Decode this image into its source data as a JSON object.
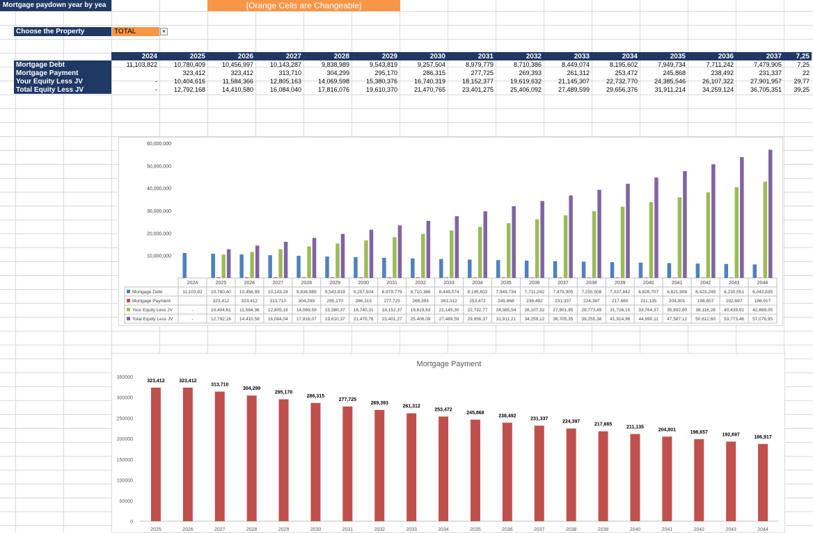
{
  "header": {
    "title": "Mortgage paydown year by yea",
    "banner": "[Orange Cells are Changeable]"
  },
  "selector": {
    "label": "Choose the Property",
    "value": "TOTAL"
  },
  "table": {
    "years": [
      "2024",
      "2025",
      "2026",
      "2027",
      "2028",
      "2029",
      "2030",
      "2031",
      "2032",
      "2033",
      "2034",
      "2035",
      "2036",
      "2037",
      "7,25"
    ],
    "rows": [
      {
        "label": "Mortgage Debt",
        "values": [
          "11,103,822",
          "10,780,409",
          "10,456,997",
          "10,143,287",
          "9,838,989",
          "9,543,819",
          "9,257,504",
          "8,979,779",
          "8,710,386",
          "8,449,074",
          "8,195,602",
          "7,949,734",
          "7,711,242",
          "7,479,905",
          "7,25"
        ]
      },
      {
        "label": "Mortgage Payment",
        "values": [
          "",
          "323,412",
          "323,412",
          "313,710",
          "304,299",
          "295,170",
          "286,315",
          "277,725",
          "269,393",
          "261,312",
          "253,472",
          "245,868",
          "238,492",
          "231,337",
          "22"
        ]
      },
      {
        "label": "Your Equity Less JV",
        "values": [
          "-",
          "10,404,616",
          "11,584,366",
          "12,805,163",
          "14,069,598",
          "15,380,376",
          "16,740,319",
          "18,152,377",
          "19,619,632",
          "21,145,307",
          "22,732,770",
          "24,385,546",
          "26,107,322",
          "27,901,957",
          "29,77"
        ]
      },
      {
        "label": "Total Equity Less JV",
        "values": [
          "-",
          "12,792,168",
          "14,410,580",
          "16,084,040",
          "17,816,076",
          "19,610,370",
          "21,470,765",
          "23,401,275",
          "25,406,092",
          "27,489,599",
          "29,656,376",
          "31,911,214",
          "34,259,124",
          "36,705,351",
          "39,25"
        ]
      }
    ]
  },
  "chart_data": [
    {
      "type": "bar",
      "title": "",
      "categories": [
        "2024",
        "2025",
        "2026",
        "2027",
        "2028",
        "2029",
        "2030",
        "2031",
        "2032",
        "2033",
        "2034",
        "2035",
        "2036",
        "2037",
        "2038",
        "2039",
        "2040",
        "2041",
        "2042",
        "2043",
        "2044"
      ],
      "ylim": [
        0,
        60000000
      ],
      "yticks": [
        "",
        "10,000,000",
        "20,000,000",
        "30,000,000",
        "40,000,000",
        "50,000,000",
        "60,000,000"
      ],
      "grid": false,
      "legend": "data-table",
      "series": [
        {
          "name": "Mortgage Debt",
          "color": "#4f81bd",
          "values": [
            11103822,
            10780409,
            10456997,
            10143287,
            9838989,
            9543819,
            9257504,
            8979779,
            8710386,
            8449074,
            8195602,
            7949734,
            7711242,
            7479905,
            7255508,
            7037842,
            6826707,
            6621906,
            6423249,
            6230551,
            6043635
          ],
          "labels": [
            "11,103,82",
            "10,780,40",
            "10,456,99",
            "10,143,28",
            "9,838,989",
            "9,543,819",
            "9,257,504",
            "8,979,779",
            "8,710,386",
            "8,449,074",
            "8,195,602",
            "7,949,734",
            "7,711,242",
            "7,479,905",
            "7,255,508",
            "7,037,842",
            "6,826,707",
            "6,621,906",
            "6,423,249",
            "6,230,551",
            "6,043,635"
          ]
        },
        {
          "name": "Mortgage Payment",
          "color": "#c0504d",
          "values": [
            0,
            323412,
            323412,
            313710,
            304299,
            295170,
            286315,
            277725,
            269393,
            261312,
            253472,
            245868,
            238492,
            231337,
            224397,
            217665,
            211135,
            204801,
            198657,
            192697,
            186917
          ],
          "labels": [
            "",
            "323,412",
            "323,412",
            "313,710",
            "304,299",
            "295,170",
            "286,315",
            "277,725",
            "269,393",
            "261,312",
            "253,472",
            "245,868",
            "238,492",
            "231,337",
            "224,397",
            "217,665",
            "211,135",
            "204,801",
            "198,657",
            "192,697",
            "186,917"
          ]
        },
        {
          "name": "Your Equity Less JV",
          "color": "#9bbb59",
          "values": [
            0,
            10404616,
            11584366,
            12805163,
            14069598,
            15380376,
            16740319,
            18152377,
            19619632,
            21145307,
            22732770,
            24385546,
            26107322,
            27901957,
            29773490,
            31726150,
            33764370,
            35892800,
            38116280,
            40439920,
            42869050
          ],
          "labels": [
            "-",
            "10,404,61",
            "11,584,36",
            "12,805,16",
            "14,069,59",
            "15,380,37",
            "16,740,31",
            "18,152,37",
            "19,619,63",
            "21,145,30",
            "22,732,77",
            "24,385,54",
            "26,107,32",
            "27,901,95",
            "29,773,49",
            "31,726,15",
            "33,764,37",
            "35,892,80",
            "38,116,28",
            "40,439,92",
            "42,869,05"
          ]
        },
        {
          "name": "Total Equity Less JV",
          "color": "#8064a2",
          "values": [
            0,
            12792168,
            14410580,
            16084040,
            17816076,
            19610370,
            21470765,
            23401275,
            25406092,
            27489599,
            29656376,
            31911214,
            34259124,
            36705351,
            39255380,
            41914960,
            44690110,
            47587120,
            50612600,
            53773460,
            57076950
          ],
          "labels": [
            "-",
            "12,792,16",
            "14,410,58",
            "16,084,04",
            "17,816,07",
            "19,610,37",
            "21,470,76",
            "23,401,27",
            "25,406,09",
            "27,489,59",
            "29,656,37",
            "31,911,21",
            "34,259,12",
            "36,705,35",
            "39,255,38",
            "41,914,96",
            "44,690,11",
            "47,587,12",
            "50,612,60",
            "53,773,46",
            "57,076,95"
          ]
        }
      ]
    },
    {
      "type": "bar",
      "title": "Mortgage Payment",
      "categories": [
        "2025",
        "2026",
        "2027",
        "2028",
        "2029",
        "2030",
        "2031",
        "2032",
        "2033",
        "2034",
        "2035",
        "2036",
        "2037",
        "2038",
        "2039",
        "2040",
        "2041",
        "2042",
        "2043",
        "2044"
      ],
      "values": [
        323412,
        323412,
        313710,
        304299,
        295170,
        286315,
        277725,
        269393,
        261312,
        253472,
        245868,
        238492,
        231337,
        224397,
        217665,
        211135,
        204801,
        198657,
        192697,
        186917
      ],
      "labels": [
        "323,412",
        "323,412",
        "313,710",
        "304,299",
        "295,170",
        "286,315",
        "277,725",
        "269,393",
        "261,312",
        "253,472",
        "245,868",
        "238,492",
        "231,337",
        "224,397",
        "217,665",
        "211,135",
        "204,801",
        "198,657",
        "192,697",
        "186,917"
      ],
      "ylim": [
        0,
        350000
      ],
      "yticks": [
        "0",
        "50000",
        "100000",
        "150000",
        "200000",
        "250000",
        "300000",
        "350000"
      ],
      "color": "#c0504d",
      "grid": false
    }
  ]
}
